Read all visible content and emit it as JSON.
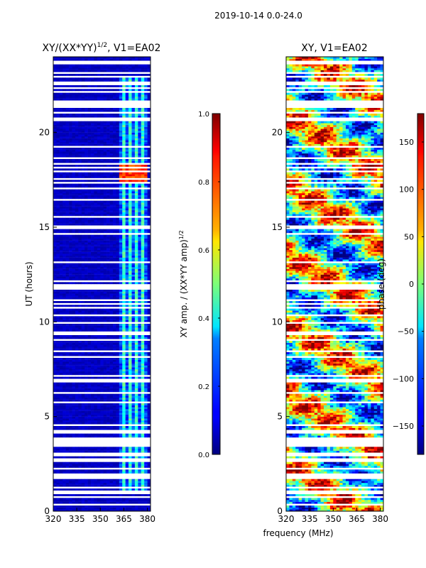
{
  "figure": {
    "suptitle": "2019-10-14 0.0-24.0",
    "xlabel_shared": "frequency (MHz)"
  },
  "chart_data": [
    {
      "type": "heatmap",
      "title_main": "XY/(XX*YY)",
      "title_exp": "1/2",
      "title_rest": ", V1=EA02",
      "ylabel": "UT (hours)",
      "xlim": [
        320,
        382
      ],
      "ylim": [
        0,
        24
      ],
      "xticks": [
        320,
        335,
        350,
        365,
        380
      ],
      "yticks": [
        0,
        5,
        10,
        15,
        20
      ],
      "colorbar": {
        "label_main": "XY amp. / (XX*YY amp)",
        "label_exp": "1/2",
        "range": [
          0.0,
          1.0
        ],
        "ticks": [
          "0.0",
          "0.2",
          "0.4",
          "0.6",
          "0.8",
          "1.0"
        ],
        "colormap": "jet"
      },
      "description_bands": "mostly low amplitude (~0.05) with elevated amplitude (~0.4) near 362-380 MHz"
    },
    {
      "type": "heatmap",
      "title": "XY, V1=EA02",
      "xlim": [
        320,
        382
      ],
      "ylim": [
        0,
        24
      ],
      "xticks": [
        320,
        335,
        350,
        365,
        380
      ],
      "yticks": [
        0,
        5,
        10,
        15,
        20
      ],
      "colorbar": {
        "label": "phase (deg)",
        "range": [
          -180,
          180
        ],
        "ticks": [
          "−150",
          "−100",
          "−50",
          "0",
          "50",
          "100",
          "150"
        ],
        "colormap": "jet"
      }
    }
  ],
  "colors": {
    "jet_low": "#00007f",
    "jet_high": "#7f0000",
    "gap": "#ffffff"
  }
}
